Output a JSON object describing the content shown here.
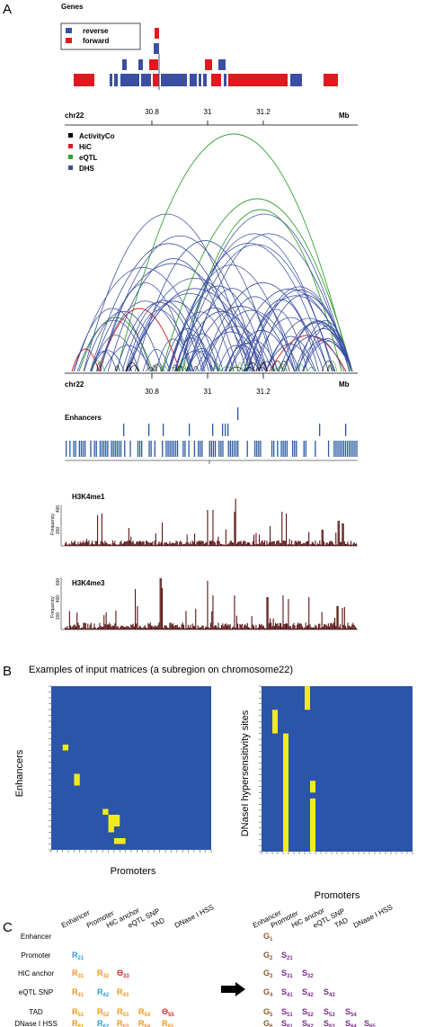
{
  "panel_a": {
    "letter": "A",
    "genes": {
      "title": "Genes",
      "legend": [
        {
          "label": "reverse",
          "color": "#3b4fa0"
        },
        {
          "label": "forward",
          "color": "#e0191f"
        }
      ]
    },
    "axis": {
      "chrom": "chr22",
      "unit": "Mb",
      "ticks": [
        {
          "value": 30.8,
          "label": "30.8"
        },
        {
          "value": 31,
          "label": "31"
        },
        {
          "value": 31.2,
          "label": "31.2"
        }
      ],
      "range": [
        30.56,
        31.46
      ]
    },
    "loops": {
      "legend": [
        {
          "label": "ActivityCo",
          "color": "#000000"
        },
        {
          "label": "HiC",
          "color": "#e0191f"
        },
        {
          "label": "eQTL",
          "color": "#33a02c"
        },
        {
          "label": "DHS",
          "color": "#3b4fa0"
        }
      ]
    },
    "enhancers": {
      "title": "Enhancers",
      "color": "#2a5aa0"
    },
    "h3k4me1": {
      "title": "H3K4me1",
      "ylabel": "Frequency",
      "yticks": [
        "200",
        "400"
      ],
      "color": "#5a1414"
    },
    "h3k4me3": {
      "title": "H3K4me3",
      "ylabel": "Frequency",
      "yticks": [
        "200",
        "400",
        "600"
      ],
      "color": "#5a1414"
    }
  },
  "panel_b": {
    "letter": "B",
    "title": "Examples of input matrices (a subregion on chromosome22)",
    "colors": {
      "background": "#2a55a8",
      "hit": "#f2ea1c"
    },
    "left": {
      "ylabel": "Enhancers",
      "xlabel": "Promoters"
    },
    "right": {
      "ylabel": "DNaseI hypersensitivity sites",
      "xlabel": "Promoters"
    }
  },
  "panel_c": {
    "letter": "C",
    "columns": [
      "Enhancer",
      "Promoter",
      "HiC anchor",
      "eQTL SNP",
      "TAD",
      "DNase I HSS"
    ],
    "rows": [
      "Enhancer",
      "Promoter",
      "HiC anchor",
      "eQTL SNP",
      "TAD",
      "DNase I HSS"
    ],
    "left_cells": [
      {
        "r": 1,
        "c": 0,
        "sym": "R",
        "sub": "21",
        "color": "#2a9fd6"
      },
      {
        "r": 2,
        "c": 0,
        "sym": "R",
        "sub": "31",
        "color": "#f0961e"
      },
      {
        "r": 2,
        "c": 1,
        "sym": "R",
        "sub": "32",
        "color": "#f0961e"
      },
      {
        "r": 2,
        "c": 2,
        "sym": "Θ",
        "sub": "33",
        "color": "#d02a2a"
      },
      {
        "r": 3,
        "c": 0,
        "sym": "R",
        "sub": "41",
        "color": "#f0961e"
      },
      {
        "r": 3,
        "c": 1,
        "sym": "R",
        "sub": "42",
        "color": "#2a9fd6"
      },
      {
        "r": 3,
        "c": 2,
        "sym": "R",
        "sub": "43",
        "color": "#f0961e"
      },
      {
        "r": 4,
        "c": 0,
        "sym": "R",
        "sub": "51",
        "color": "#f0961e"
      },
      {
        "r": 4,
        "c": 1,
        "sym": "R",
        "sub": "52",
        "color": "#f0961e"
      },
      {
        "r": 4,
        "c": 2,
        "sym": "R",
        "sub": "53",
        "color": "#f0961e"
      },
      {
        "r": 4,
        "c": 3,
        "sym": "R",
        "sub": "54",
        "color": "#f0961e"
      },
      {
        "r": 4,
        "c": 4,
        "sym": "Θ",
        "sub": "55",
        "color": "#d02a2a"
      },
      {
        "r": 5,
        "c": 0,
        "sym": "R",
        "sub": "61",
        "color": "#f0961e"
      },
      {
        "r": 5,
        "c": 1,
        "sym": "R",
        "sub": "62",
        "color": "#2a9fd6"
      },
      {
        "r": 5,
        "c": 2,
        "sym": "R",
        "sub": "63",
        "color": "#f0961e"
      },
      {
        "r": 5,
        "c": 3,
        "sym": "R",
        "sub": "64",
        "color": "#f0961e"
      },
      {
        "r": 5,
        "c": 4,
        "sym": "R",
        "sub": "65",
        "color": "#f0961e"
      }
    ],
    "right_cells": [
      {
        "r": 0,
        "c": 0,
        "sym": "G",
        "sub": "1",
        "color": "#8a5a2a"
      },
      {
        "r": 1,
        "c": 0,
        "sym": "G",
        "sub": "2",
        "color": "#8a5a2a"
      },
      {
        "r": 1,
        "c": 1,
        "sym": "S",
        "sub": "21",
        "color": "#7a2a8a"
      },
      {
        "r": 2,
        "c": 0,
        "sym": "G",
        "sub": "3",
        "color": "#8a5a2a"
      },
      {
        "r": 2,
        "c": 1,
        "sym": "S",
        "sub": "31",
        "color": "#7a2a8a"
      },
      {
        "r": 2,
        "c": 2,
        "sym": "S",
        "sub": "32",
        "color": "#7a2a8a"
      },
      {
        "r": 3,
        "c": 0,
        "sym": "G",
        "sub": "4",
        "color": "#8a5a2a"
      },
      {
        "r": 3,
        "c": 1,
        "sym": "S",
        "sub": "41",
        "color": "#7a2a8a"
      },
      {
        "r": 3,
        "c": 2,
        "sym": "S",
        "sub": "42",
        "color": "#7a2a8a"
      },
      {
        "r": 3,
        "c": 3,
        "sym": "S",
        "sub": "43",
        "color": "#7a2a8a"
      },
      {
        "r": 4,
        "c": 0,
        "sym": "G",
        "sub": "5",
        "color": "#8a5a2a"
      },
      {
        "r": 4,
        "c": 1,
        "sym": "S",
        "sub": "51",
        "color": "#7a2a8a"
      },
      {
        "r": 4,
        "c": 2,
        "sym": "S",
        "sub": "52",
        "color": "#7a2a8a"
      },
      {
        "r": 4,
        "c": 3,
        "sym": "S",
        "sub": "53",
        "color": "#7a2a8a"
      },
      {
        "r": 4,
        "c": 4,
        "sym": "S",
        "sub": "54",
        "color": "#7a2a8a"
      },
      {
        "r": 5,
        "c": 0,
        "sym": "G",
        "sub": "6",
        "color": "#8a5a2a"
      },
      {
        "r": 5,
        "c": 1,
        "sym": "S",
        "sub": "61",
        "color": "#7a2a8a"
      },
      {
        "r": 5,
        "c": 2,
        "sym": "S",
        "sub": "62",
        "color": "#7a2a8a"
      },
      {
        "r": 5,
        "c": 3,
        "sym": "S",
        "sub": "63",
        "color": "#7a2a8a"
      },
      {
        "r": 5,
        "c": 4,
        "sym": "S",
        "sub": "64",
        "color": "#7a2a8a"
      },
      {
        "r": 5,
        "c": 5,
        "sym": "S",
        "sub": "65",
        "color": "#7a2a8a"
      }
    ]
  }
}
